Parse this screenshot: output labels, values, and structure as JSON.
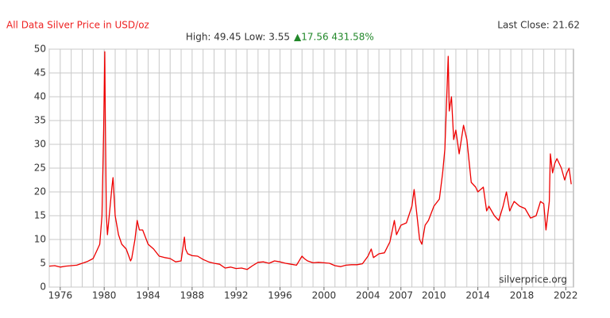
{
  "chart_data": {
    "type": "line",
    "title": "All Data Silver Price in USD/oz",
    "summary": "High: 49.45 Low: 3.55",
    "change": "▲17.56 431.58%",
    "last_close": "Last Close: 21.62",
    "source": "silverprice.org",
    "xlim": [
      1975,
      2022.7
    ],
    "ylim": [
      0,
      50
    ],
    "xticks": [
      1976,
      1980,
      1984,
      1988,
      1992,
      1996,
      2000,
      2004,
      2007,
      2010,
      2014,
      2018,
      2022
    ],
    "xgrid": [
      1975,
      1976,
      1977,
      1978,
      1979,
      1980,
      1981,
      1982,
      1983,
      1984,
      1985,
      1986,
      1987,
      1988,
      1989,
      1990,
      1991,
      1992,
      1993,
      1994,
      1995,
      1996,
      1997,
      1998,
      1999,
      2000,
      2001,
      2002,
      2003,
      2004,
      2005,
      2006,
      2007,
      2008,
      2009,
      2010,
      2011,
      2012,
      2013,
      2014,
      2015,
      2016,
      2017,
      2018,
      2019,
      2020,
      2021,
      2022
    ],
    "yticks": [
      0,
      5,
      10,
      15,
      20,
      25,
      30,
      35,
      40,
      45,
      50
    ],
    "grid": true,
    "series": [
      {
        "name": "Silver",
        "color": "#ee0000",
        "x": [
          1975,
          1975.5,
          1976,
          1976.5,
          1977,
          1977.5,
          1978,
          1978.5,
          1979,
          1979.3,
          1979.6,
          1979.8,
          1979.95,
          1980.05,
          1980.1,
          1980.2,
          1980.3,
          1980.5,
          1980.7,
          1980.8,
          1981,
          1981.3,
          1981.6,
          1982,
          1982.4,
          1982.5,
          1982.8,
          1983,
          1983.2,
          1983.5,
          1984,
          1984.5,
          1985,
          1985.5,
          1986,
          1986.5,
          1987,
          1987.3,
          1987.4,
          1987.6,
          1988,
          1988.5,
          1989,
          1989.5,
          1990,
          1990.5,
          1991,
          1991.5,
          1992,
          1992.5,
          1993,
          1993.5,
          1994,
          1994.5,
          1995,
          1995.5,
          1996,
          1996.5,
          1997,
          1997.5,
          1998,
          1998.2,
          1998.5,
          1999,
          1999.5,
          2000,
          2000.5,
          2001,
          2001.5,
          2002,
          2002.5,
          2003,
          2003.5,
          2004,
          2004.3,
          2004.5,
          2005,
          2005.5,
          2006,
          2006.4,
          2006.6,
          2007,
          2007.5,
          2008,
          2008.2,
          2008.7,
          2008.9,
          2009.2,
          2009.5,
          2010,
          2010.5,
          2010.8,
          2011,
          2011.3,
          2011.4,
          2011.6,
          2011.8,
          2012,
          2012.3,
          2012.7,
          2013,
          2013.4,
          2013.8,
          2014,
          2014.5,
          2014.8,
          2015,
          2015.5,
          2015.9,
          2016.3,
          2016.6,
          2016.9,
          2017.3,
          2017.8,
          2018.3,
          2018.8,
          2019.3,
          2019.7,
          2020,
          2020.2,
          2020.5,
          2020.6,
          2020.8,
          2021,
          2021.2,
          2021.6,
          2021.9,
          2022.1,
          2022.3,
          2022.5
        ],
        "values": [
          4.4,
          4.5,
          4.2,
          4.4,
          4.5,
          4.6,
          5.0,
          5.4,
          6,
          7.5,
          9,
          15,
          33,
          49.45,
          35,
          15,
          11,
          16,
          21,
          23,
          15,
          11,
          9,
          8,
          5.5,
          6,
          10,
          14,
          12,
          12,
          9,
          8,
          6.5,
          6.2,
          6,
          5.3,
          5.5,
          10.5,
          8,
          7,
          6.6,
          6.5,
          5.8,
          5.3,
          5,
          4.8,
          4,
          4.2,
          3.9,
          4,
          3.7,
          4.5,
          5.2,
          5.3,
          5,
          5.5,
          5.3,
          5,
          4.8,
          4.6,
          6.5,
          6,
          5.5,
          5.1,
          5.2,
          5.1,
          5,
          4.5,
          4.3,
          4.6,
          4.7,
          4.7,
          4.9,
          6.5,
          8,
          6.2,
          7,
          7.2,
          9.5,
          14,
          11,
          13,
          13.5,
          17,
          20.5,
          10,
          9,
          13,
          14,
          17,
          18.5,
          24,
          29,
          48.5,
          37,
          40,
          31,
          33,
          28,
          34,
          31,
          22,
          21,
          20,
          21,
          16,
          17,
          15,
          14,
          17,
          20,
          16,
          18,
          17,
          16.5,
          14.5,
          15,
          18,
          17.5,
          12,
          18,
          28,
          24,
          26,
          27,
          25,
          22.5,
          24,
          25,
          21.62
        ]
      }
    ]
  }
}
